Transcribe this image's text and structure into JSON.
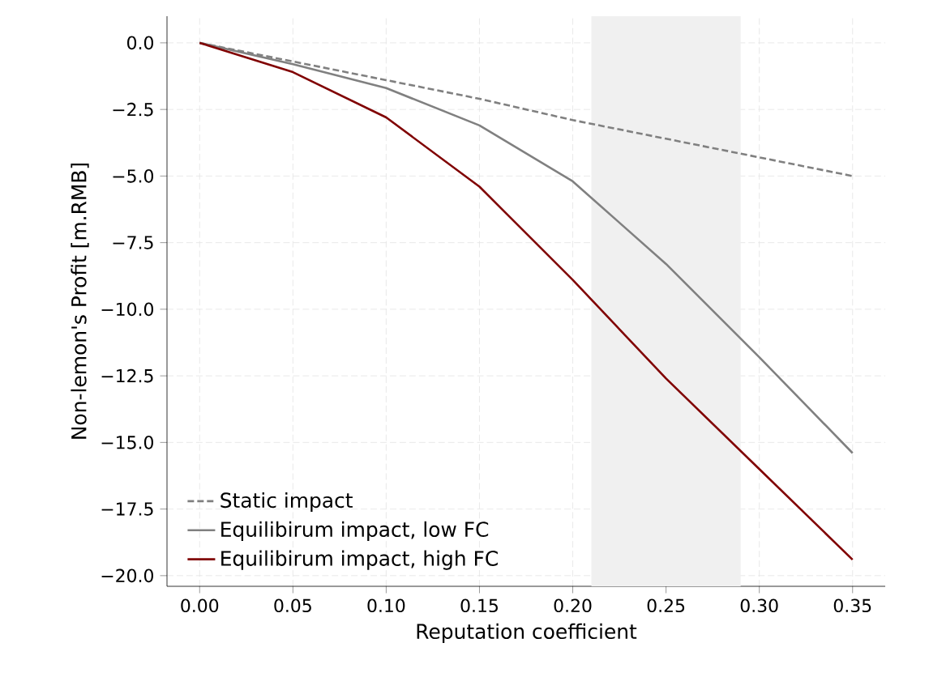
{
  "chart_data": {
    "type": "line",
    "xlabel": "Reputation coefficient",
    "ylabel": "Non-lemon's Profit [m.RMB]",
    "x": [
      0,
      0.05,
      0.1,
      0.15,
      0.2,
      0.25,
      0.3,
      0.35
    ],
    "series": [
      {
        "name": "Static impact",
        "color": "#808080",
        "line_style": "dashed",
        "values": [
          0,
          -0.7,
          -1.4,
          -2.1,
          -2.9,
          -3.6,
          -4.3,
          -5.0
        ]
      },
      {
        "name": "Equilibirum impact, low FC",
        "color": "#808080",
        "line_style": "solid",
        "values": [
          0,
          -0.8,
          -1.7,
          -3.1,
          -5.2,
          -8.3,
          -11.8,
          -15.4
        ]
      },
      {
        "name": "Equilibirum impact, high FC",
        "color": "#800000",
        "line_style": "solid",
        "values": [
          0,
          -1.1,
          -2.8,
          -5.4,
          -8.9,
          -12.6,
          -16.0,
          -19.4
        ]
      }
    ],
    "bands": [
      {
        "axis": "x",
        "from": 0.21,
        "to": 0.29,
        "color": "#f0f0f0"
      }
    ],
    "xlim": [
      -0.0175,
      0.3675
    ],
    "ylim": [
      -20.4,
      1.0
    ],
    "xticks": [
      {
        "value": 0,
        "label": "0.00"
      },
      {
        "value": 0.05,
        "label": "0.05"
      },
      {
        "value": 0.1,
        "label": "0.10"
      },
      {
        "value": 0.15,
        "label": "0.15"
      },
      {
        "value": 0.2,
        "label": "0.20"
      },
      {
        "value": 0.25,
        "label": "0.25"
      },
      {
        "value": 0.3,
        "label": "0.30"
      },
      {
        "value": 0.35,
        "label": "0.35"
      }
    ],
    "yticks": [
      {
        "value": 0,
        "label": "0.0"
      },
      {
        "value": -2.5,
        "label": "−2.5"
      },
      {
        "value": -5,
        "label": "−5.0"
      },
      {
        "value": -7.5,
        "label": "−7.5"
      },
      {
        "value": -10,
        "label": "−10.0"
      },
      {
        "value": -12.5,
        "label": "−12.5"
      },
      {
        "value": -15,
        "label": "−15.0"
      },
      {
        "value": -17.5,
        "label": "−17.5"
      },
      {
        "value": -20,
        "label": "−20.0"
      }
    ],
    "grid": true,
    "legend": "bottom left",
    "marker": "none"
  }
}
